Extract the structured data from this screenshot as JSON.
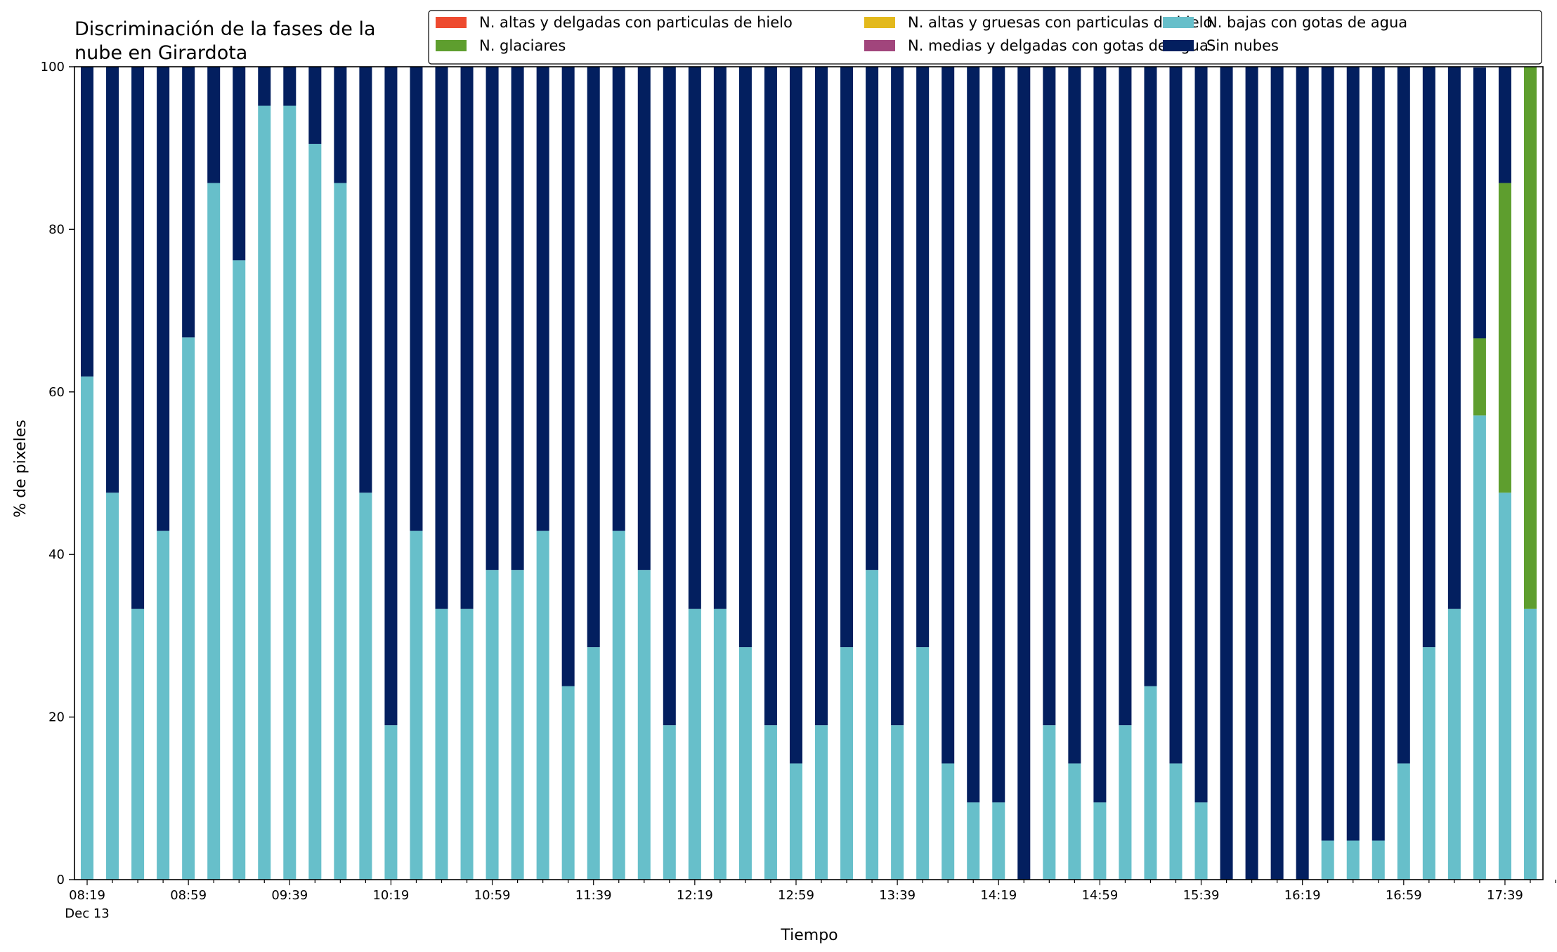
{
  "chart_data": {
    "type": "bar",
    "stacked": true,
    "title_lines": [
      "Discriminación de la fases de la",
      "nube en Girardota"
    ],
    "xlabel": "Tiempo",
    "ylabel": "% de pixeles",
    "ylim": [
      0,
      100
    ],
    "yticks": [
      0,
      20,
      40,
      60,
      80,
      100
    ],
    "grid": false,
    "legend_position": "top-right",
    "date_label": "Dec 13",
    "x": [
      "08:19",
      "08:29",
      "08:39",
      "08:49",
      "08:59",
      "09:09",
      "09:19",
      "09:29",
      "09:39",
      "09:49",
      "09:59",
      "10:09",
      "10:19",
      "10:29",
      "10:39",
      "10:49",
      "10:59",
      "11:09",
      "11:19",
      "11:29",
      "11:39",
      "11:49",
      "11:59",
      "12:09",
      "12:19",
      "12:29",
      "12:39",
      "12:49",
      "12:59",
      "13:09",
      "13:19",
      "13:29",
      "13:39",
      "13:49",
      "13:59",
      "14:09",
      "14:19",
      "14:29",
      "14:39",
      "14:49",
      "14:59",
      "15:09",
      "15:19",
      "15:29",
      "15:39",
      "15:49",
      "15:59",
      "16:09",
      "16:19",
      "16:29",
      "16:39",
      "16:49",
      "16:59",
      "17:09",
      "17:19",
      "17:29",
      "17:39",
      "17:49"
    ],
    "x_tick_labels": [
      "08:19",
      "08:59",
      "09:39",
      "10:19",
      "10:59",
      "11:39",
      "12:19",
      "12:59",
      "13:39",
      "14:19",
      "14:59",
      "15:39",
      "16:19",
      "16:59",
      "17:39"
    ],
    "series": [
      {
        "name": "N. altas y delgadas con particulas de hielo",
        "color": "#ee4a2f",
        "values": [
          0,
          0,
          0,
          0,
          0,
          0,
          0,
          0,
          0,
          0,
          0,
          0,
          0,
          0,
          0,
          0,
          0,
          0,
          0,
          0,
          0,
          0,
          0,
          0,
          0,
          0,
          0,
          0,
          0,
          0,
          0,
          0,
          0,
          0,
          0,
          0,
          0,
          0,
          0,
          0,
          0,
          0,
          0,
          0,
          0,
          0,
          0,
          0,
          0,
          0,
          0,
          0,
          0,
          0,
          0,
          0,
          0,
          0
        ]
      },
      {
        "name": "N. altas y gruesas con particulas de hielo",
        "color": "#e3b91c",
        "values": [
          0,
          0,
          0,
          0,
          0,
          0,
          0,
          0,
          0,
          0,
          0,
          0,
          0,
          0,
          0,
          0,
          0,
          0,
          0,
          0,
          0,
          0,
          0,
          0,
          0,
          0,
          0,
          0,
          0,
          0,
          0,
          0,
          0,
          0,
          0,
          0,
          0,
          0,
          0,
          0,
          0,
          0,
          0,
          0,
          0,
          0,
          0,
          0,
          0,
          0,
          0,
          0,
          0,
          0,
          0,
          0,
          0,
          0
        ]
      },
      {
        "name": "N. bajas con gotas de agua",
        "color": "#67bfca",
        "values": [
          61.9,
          47.6,
          33.3,
          42.9,
          66.7,
          85.7,
          76.2,
          95.2,
          95.2,
          90.5,
          85.7,
          47.6,
          19.0,
          42.9,
          33.3,
          33.3,
          38.1,
          38.1,
          42.9,
          23.8,
          28.6,
          42.9,
          38.1,
          19.0,
          33.3,
          33.3,
          28.6,
          19.0,
          14.3,
          19.0,
          28.6,
          38.1,
          19.0,
          28.6,
          14.3,
          9.5,
          9.5,
          0,
          19.0,
          14.3,
          9.5,
          19.0,
          23.8,
          14.3,
          9.5,
          0,
          0,
          0,
          0,
          4.8,
          4.8,
          4.8,
          14.3,
          28.6,
          33.3,
          57.1,
          47.6,
          33.3
        ]
      },
      {
        "name": "N. glaciares",
        "color": "#5e9e2e",
        "values": [
          0,
          0,
          0,
          0,
          0,
          0,
          0,
          0,
          0,
          0,
          0,
          0,
          0,
          0,
          0,
          0,
          0,
          0,
          0,
          0,
          0,
          0,
          0,
          0,
          0,
          0,
          0,
          0,
          0,
          0,
          0,
          0,
          0,
          0,
          0,
          0,
          0,
          0,
          0,
          0,
          0,
          0,
          0,
          0,
          0,
          0,
          0,
          0,
          0,
          0,
          0,
          0,
          0,
          0,
          0,
          9.5,
          38.1,
          66.7
        ]
      },
      {
        "name": "N. medias y delgadas con gotas de agua",
        "color": "#a1457c",
        "values": [
          0,
          0,
          0,
          0,
          0,
          0,
          0,
          0,
          0,
          0,
          0,
          0,
          0,
          0,
          0,
          0,
          0,
          0,
          0,
          0,
          0,
          0,
          0,
          0,
          0,
          0,
          0,
          0,
          0,
          0,
          0,
          0,
          0,
          0,
          0,
          0,
          0,
          0,
          0,
          0,
          0,
          0,
          0,
          0,
          0,
          0,
          0,
          0,
          0,
          0,
          0,
          0,
          0,
          0,
          0,
          0,
          0,
          0
        ]
      },
      {
        "name": "Sin nubes",
        "color": "#031f5f",
        "values": [
          38.1,
          52.4,
          66.7,
          57.1,
          33.3,
          14.3,
          23.8,
          4.8,
          4.8,
          9.5,
          14.3,
          52.4,
          81.0,
          57.1,
          66.7,
          66.7,
          61.9,
          61.9,
          57.1,
          76.2,
          71.4,
          57.1,
          61.9,
          81.0,
          66.7,
          66.7,
          71.4,
          81.0,
          85.7,
          81.0,
          71.4,
          61.9,
          81.0,
          71.4,
          85.7,
          90.5,
          90.5,
          100,
          81.0,
          85.7,
          90.5,
          81.0,
          76.2,
          85.7,
          90.5,
          100,
          100,
          100,
          100,
          95.2,
          95.2,
          95.2,
          85.7,
          71.4,
          66.7,
          33.3,
          14.3,
          0
        ]
      }
    ],
    "legend_order": [
      0,
      1,
      2,
      3,
      4,
      5
    ]
  }
}
